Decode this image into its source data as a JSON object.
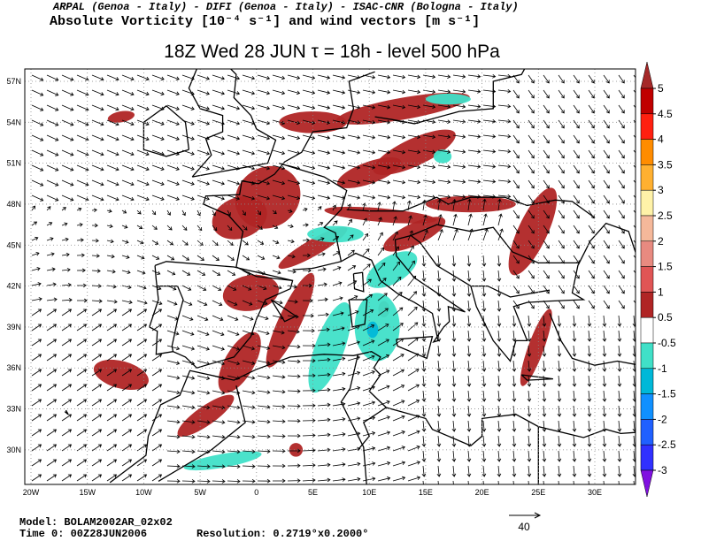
{
  "header": {
    "institutions": "ARPAL (Genoa - Italy)  -  DIFI (Genoa - Italy)  -  ISAC-CNR (Bologna - Italy)",
    "field": "Absolute Vorticity [10⁻⁴ s⁻¹] and wind vectors [m s⁻¹]",
    "title": "18Z Wed 28 JUN  τ = 18h  -  level 500 hPa"
  },
  "map": {
    "lat_ticks": [
      {
        "value": 57,
        "label": "57N"
      },
      {
        "value": 54,
        "label": "54N"
      },
      {
        "value": 51,
        "label": "51N"
      },
      {
        "value": 48,
        "label": "48N"
      },
      {
        "value": 45,
        "label": "45N"
      },
      {
        "value": 42,
        "label": "42N"
      },
      {
        "value": 39,
        "label": "39N"
      },
      {
        "value": 36,
        "label": "36N"
      },
      {
        "value": 33,
        "label": "33N"
      },
      {
        "value": 30,
        "label": "30N"
      }
    ],
    "lon_ticks": [
      {
        "value": -20,
        "label": "20W"
      },
      {
        "value": -15,
        "label": "15W"
      },
      {
        "value": -10,
        "label": "10W"
      },
      {
        "value": -5,
        "label": "5W"
      },
      0,
      {
        "value": 5,
        "label": "5E"
      },
      {
        "value": 10,
        "label": "10E"
      },
      {
        "value": 15,
        "label": "15E"
      },
      {
        "value": 20,
        "label": "20E"
      },
      {
        "value": 25,
        "label": "25E"
      },
      {
        "value": 30,
        "label": "30E"
      }
    ],
    "grid": true
  },
  "colorbar": {
    "ticks": [
      5,
      4.5,
      4,
      3.5,
      3,
      2.5,
      2,
      1.5,
      1,
      0.5,
      -0.5,
      -1,
      -1.5,
      -2,
      -2.5,
      -3
    ],
    "colors": [
      "#a52828",
      "#c00000",
      "#ff2010",
      "#ff8c00",
      "#ffb030",
      "#fff2a8",
      "#f5b89a",
      "#e88a80",
      "#e05555",
      "#b02525",
      "#ffffff",
      "#40e0c8",
      "#00b8d8",
      "#1090ff",
      "#2060ff",
      "#3030ff",
      "#8010e0"
    ]
  },
  "footer": {
    "model": "Model: BOLAM2002AR_02x02",
    "time": "Time 0: 00Z28JUN2006",
    "resolution": "Resolution: 0.2719°x0.2000°",
    "reference_vector": "40"
  }
}
